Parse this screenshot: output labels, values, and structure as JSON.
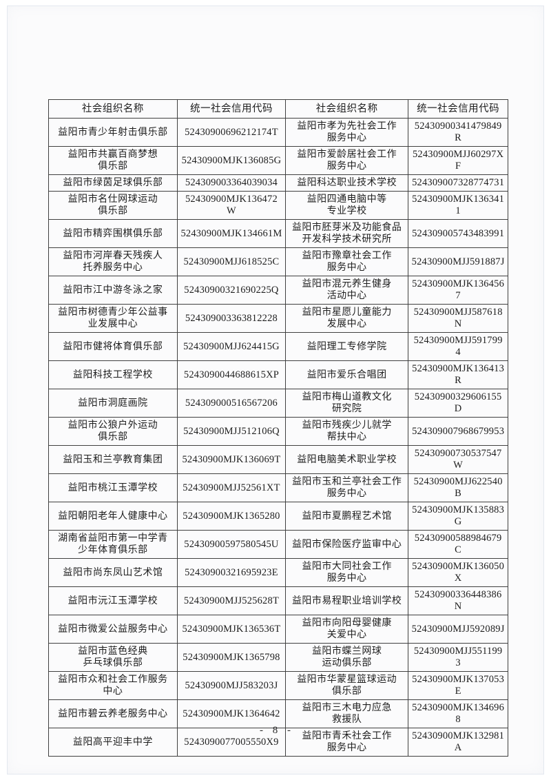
{
  "colors": {
    "paper": "#fbfbfc",
    "ink": "#1d1d1d",
    "grid_line": "#3f3f3f"
  },
  "page": {
    "number_label": "- 8 -"
  },
  "table": {
    "headers": [
      "社会组织名称",
      "统一社会信用代码",
      "社会组织名称",
      "统一社会信用代码"
    ],
    "rows": [
      {
        "l_name": "益阳市青少年射击俱乐部",
        "l_code": "52430900696212174T",
        "r_name": "益阳市孝为先社会工作\n服务中心",
        "r_code": "52430900341479849R"
      },
      {
        "l_name": "益阳市共赢百商梦想\n俱乐部",
        "l_code": "52430900MJK136085G",
        "r_name": "益阳市爱龄居社会工作\n服务中心",
        "r_code": "52430900MJJ60297X\nF"
      },
      {
        "l_name": "益阳市绿茵足球俱乐部",
        "l_code": "524309003364039034",
        "r_name": "益阳科达职业技术学校",
        "r_code": "524309007328774731"
      },
      {
        "l_name": "益阳市名仕网球运动\n俱乐部",
        "l_code": "52430900MJK136472\nW",
        "r_name": "益阳四通电脑中等\n专业学校",
        "r_code": "52430900MJK136341\n1"
      },
      {
        "l_name": "益阳市精弈围棋俱乐部",
        "l_code": "52430900MJK134661M",
        "r_name": "益阳市胚芽米及功能食品\n开发科学技术研究所",
        "r_code": "524309005743483991"
      },
      {
        "l_name": "益阳市河岸春天残疾人\n托养服务中心",
        "l_code": "52430900MJJ618525C",
        "r_name": "益阳市豫章社会工作\n服务中心",
        "r_code": "52430900MJJ591887J"
      },
      {
        "l_name": "益阳市江中游冬泳之家",
        "l_code": "52430900321690225Q",
        "r_name": "益阳市混元养生健身\n活动中心",
        "r_code": "52430900MJK136456\n7"
      },
      {
        "l_name": "益阳市树德青少年公益事\n业发展中心",
        "l_code": "524309003363812228",
        "r_name": "益阳市星愿儿童能力\n发展中心",
        "r_code": "52430900MJJ587618\nN"
      },
      {
        "l_name": "益阳市健将体育俱乐部",
        "l_code": "52430900MJJ624415G",
        "r_name": "益阳理工专修学院",
        "r_code": "52430900MJJ5917994"
      },
      {
        "l_name": "益阳科技工程学校",
        "l_code": "5243090044688615XP",
        "r_name": "益阳市爱乐合唱团",
        "r_code": "52430900MJK136413\nR"
      },
      {
        "l_name": "益阳市洞庭画院",
        "l_code": "524309000516567206",
        "r_name": "益阳市梅山道教文化\n研究院",
        "r_code": "52430900329606155D"
      },
      {
        "l_name": "益阳市公狼户外运动\n俱乐部",
        "l_code": "52430900MJJ512106Q",
        "r_name": "益阳市残疾少儿就学\n帮扶中心",
        "r_code": "524309007968679953"
      },
      {
        "l_name": "益阳玉和兰亭教育集团",
        "l_code": "52430900MJK136069T",
        "r_name": "益阳电脑美术职业学校",
        "r_code": "52430900730537547\nW"
      },
      {
        "l_name": "益阳市桃江玉潭学校",
        "l_code": "52430900MJJ52561XT",
        "r_name": "益阳市玉和兰亭社会工作\n服务中心",
        "r_code": "52430900MJJ622540\nB"
      },
      {
        "l_name": "益阳朝阳老年人健康中心",
        "l_code": "52430900MJK1365280",
        "r_name": "益阳市夏鹏程艺术馆",
        "r_code": "52430900MJK135883\nG"
      },
      {
        "l_name": "湖南省益阳市第一中学青\n少年体育俱乐部",
        "l_code": "52430900597580545U",
        "r_name": "益阳市保险医疗监审中心",
        "r_code": "52430900588984679C"
      },
      {
        "l_name": "益阳市尚东凤山艺术馆",
        "l_code": "52430900321695923E",
        "r_name": "益阳市大同社会工作\n服务中心",
        "r_code": "52430900MJK136050\nX"
      },
      {
        "l_name": "益阳市沅江玉潭学校",
        "l_code": "52430900MJJ525628T",
        "r_name": "益阳市易程职业培训学校",
        "r_code": "52430900336448386N"
      },
      {
        "l_name": "益阳市微爱公益服务中心",
        "l_code": "52430900MJK136536T",
        "r_name": "益阳市向阳母婴健康\n关爱中心",
        "r_code": "52430900MJJ592089J"
      },
      {
        "l_name": "益阳市蓝色经典\n乒乓球俱乐部",
        "l_code": "52430900MJK1365798",
        "r_name": "益阳市蝶兰网球\n运动俱乐部",
        "r_code": "52430900MJJ5511993"
      },
      {
        "l_name": "益阳市众和社会工作服务\n中心",
        "l_code": "52430900MJJ583203J",
        "r_name": "益阳市华蒙星篮球运动\n俱乐部",
        "r_code": "52430900MJK137053\nE"
      },
      {
        "l_name": "益阳市碧云养老服务中心",
        "l_code": "52430900MJK1364642",
        "r_name": "益阳市三木电力应急\n救援队",
        "r_code": "52430900MJK134696\n8"
      },
      {
        "l_name": "益阳高平迎丰中学",
        "l_code": "5243090077005550X9",
        "r_name": "益阳市青禾社会工作\n服务中心",
        "r_code": "52430900MJK132981A"
      }
    ]
  }
}
